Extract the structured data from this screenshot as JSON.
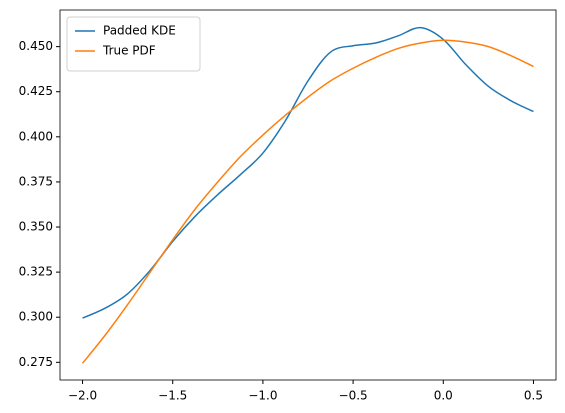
{
  "chart_data": {
    "type": "line",
    "x": [
      -2,
      -1.875,
      -1.75,
      -1.625,
      -1.5,
      -1.375,
      -1.25,
      -1.125,
      -1,
      -0.875,
      -0.75,
      -0.625,
      -0.5,
      -0.375,
      -0.25,
      -0.125,
      0,
      0.125,
      0.25,
      0.375,
      0.5
    ],
    "series": [
      {
        "name": "Padded KDE",
        "color": "#1f77b4",
        "values": [
          0.2995,
          0.305,
          0.313,
          0.326,
          0.342,
          0.356,
          0.368,
          0.379,
          0.391,
          0.409,
          0.431,
          0.447,
          0.4505,
          0.452,
          0.456,
          0.4605,
          0.454,
          0.44,
          0.428,
          0.42,
          0.414
        ]
      },
      {
        "name": "True PDF",
        "color": "#ff7f0e",
        "values": [
          0.2745,
          0.29,
          0.307,
          0.325,
          0.343,
          0.36,
          0.375,
          0.389,
          0.401,
          0.412,
          0.422,
          0.431,
          0.438,
          0.444,
          0.449,
          0.452,
          0.4535,
          0.4525,
          0.45,
          0.445,
          0.439
        ]
      }
    ],
    "xlim": [
      -2.125,
      0.625
    ],
    "ylim": [
      0.2652,
      0.4703
    ],
    "xticks": [
      {
        "value": -2,
        "label": "−2.0"
      },
      {
        "value": -1.5,
        "label": "−1.5"
      },
      {
        "value": -1,
        "label": "−1.0"
      },
      {
        "value": -0.5,
        "label": "−0.5"
      },
      {
        "value": 0,
        "label": "0.0"
      },
      0.5
    ],
    "yticks": [
      {
        "value": 0.275,
        "label": "0.275"
      },
      {
        "value": 0.3,
        "label": "0.300"
      },
      {
        "value": 0.325,
        "label": "0.325"
      },
      {
        "value": 0.35,
        "label": "0.350"
      },
      {
        "value": 0.375,
        "label": "0.375"
      },
      {
        "value": 0.4,
        "label": "0.400"
      },
      {
        "value": 0.425,
        "label": "0.425"
      },
      {
        "value": 0.45,
        "label": "0.450"
      }
    ],
    "legend": "upper left"
  }
}
